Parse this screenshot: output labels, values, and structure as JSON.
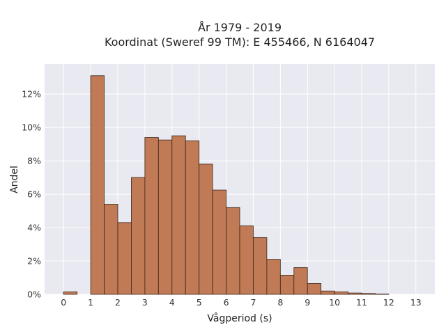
{
  "chart_data": {
    "type": "bar",
    "title_lines": [
      "År 1979 - 2019",
      "Koordinat (Sweref 99 TM): E 455466, N 6164047"
    ],
    "xlabel": "Vågperiod (s)",
    "ylabel": "Andel",
    "bin_width": 0.5,
    "bins": [
      {
        "start": 0.0,
        "value": 0.15
      },
      {
        "start": 0.5,
        "value": 0.0
      },
      {
        "start": 1.0,
        "value": 13.1
      },
      {
        "start": 1.5,
        "value": 5.4
      },
      {
        "start": 2.0,
        "value": 4.3
      },
      {
        "start": 2.5,
        "value": 7.0
      },
      {
        "start": 3.0,
        "value": 9.4
      },
      {
        "start": 3.5,
        "value": 9.25
      },
      {
        "start": 4.0,
        "value": 9.5
      },
      {
        "start": 4.5,
        "value": 9.2
      },
      {
        "start": 5.0,
        "value": 7.8
      },
      {
        "start": 5.5,
        "value": 6.25
      },
      {
        "start": 6.0,
        "value": 5.2
      },
      {
        "start": 6.5,
        "value": 4.1
      },
      {
        "start": 7.0,
        "value": 3.4
      },
      {
        "start": 7.5,
        "value": 2.1
      },
      {
        "start": 8.0,
        "value": 1.15
      },
      {
        "start": 8.5,
        "value": 1.6
      },
      {
        "start": 9.0,
        "value": 0.65
      },
      {
        "start": 9.5,
        "value": 0.2
      },
      {
        "start": 10.0,
        "value": 0.15
      },
      {
        "start": 10.5,
        "value": 0.08
      },
      {
        "start": 11.0,
        "value": 0.05
      },
      {
        "start": 11.5,
        "value": 0.02
      }
    ],
    "x_ticks": [
      0,
      1,
      2,
      3,
      4,
      5,
      6,
      7,
      8,
      9,
      10,
      11,
      12,
      13
    ],
    "y_ticks": [
      0,
      2,
      4,
      6,
      8,
      10,
      12
    ],
    "y_tick_suffix": "%",
    "xlim": [
      -0.7,
      13.7
    ],
    "ylim": [
      0,
      13.8
    ],
    "grid": true,
    "colors": {
      "bar_fill": "#c07a55",
      "bar_stroke": "#3a2418",
      "plot_background": "#e8e9f1",
      "grid": "#ffffff"
    }
  }
}
